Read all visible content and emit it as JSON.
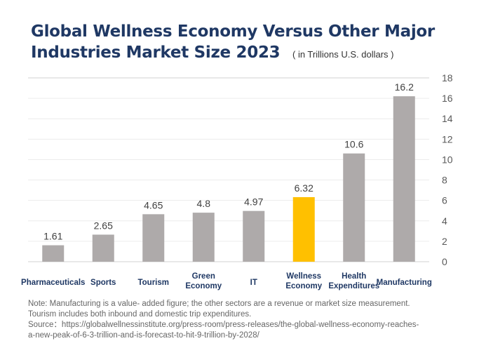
{
  "title_line1": "Global Wellness Economy Versus Other Major",
  "title_line2": "Industries Market Size 2023",
  "unit_label": "( in Trillions U.S. dollars )",
  "notes": [
    "Note: Manufacturing is a value- added figure; the  other sectors are a revenue or market size measurement.",
    "Tourism includes both inbound and domestic trip expenditures.",
    "Source：https://globalwellnessinstitute.org/press-room/press-releases/the-global-wellness-economy-reaches-",
    "a-new-peak-of-6-3-trillion-and-is-forecast-to-hit-9-trillion-by-2028/"
  ],
  "colors": {
    "default_bar": "#aeaaaa",
    "highlight_bar": "#ffc000",
    "title": "#1f3864"
  },
  "chart_data": {
    "type": "bar",
    "title": "Global Wellness Economy Versus Other Major Industries Market Size 2023",
    "ylabel": "( in Trillions U.S. dollars )",
    "categories": [
      [
        "Pharmaceuticals"
      ],
      [
        "Sports"
      ],
      [
        "Tourism"
      ],
      [
        "Green",
        "Economy"
      ],
      [
        "IT"
      ],
      [
        "Wellness",
        "Economy"
      ],
      [
        "Health",
        "Expenditures"
      ],
      [
        "Manufacturing"
      ]
    ],
    "values": [
      1.61,
      2.65,
      4.65,
      4.8,
      4.97,
      6.32,
      10.6,
      16.2
    ],
    "value_labels": [
      "1.61",
      "2.65",
      "4.65",
      "4.8",
      "4.97",
      "6.32",
      "10.6",
      "16.2"
    ],
    "highlight": "Wellness Economy",
    "ylim": [
      0,
      18
    ],
    "yticks": [
      0,
      2,
      4,
      6,
      8,
      10,
      12,
      14,
      16,
      18
    ],
    "y_axis_side": "right",
    "grid": true,
    "legend": "none"
  }
}
